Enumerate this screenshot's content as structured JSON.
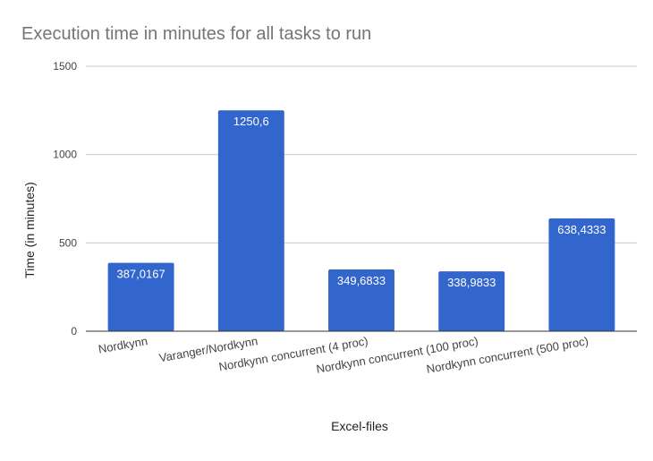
{
  "chart_data": {
    "type": "bar",
    "title": "Execution time in minutes for all tasks to run",
    "xlabel": "Excel-files",
    "ylabel": "Time (in minutes)",
    "ylim": [
      0,
      1500
    ],
    "yticks": [
      0,
      500,
      1000,
      1500
    ],
    "grid": true,
    "bar_color": "#3366cc",
    "categories": [
      "Nordkynn",
      "Varanger/Nordkynn",
      "Nordkynn concurrent (4 proc)",
      "Nordkynn concurrent (100 proc)",
      "Nordkynn concurrent (500 proc)"
    ],
    "values": [
      387.0167,
      1250.6,
      349.6833,
      338.9833,
      638.4333
    ],
    "value_labels": [
      "387,0167",
      "1250,6",
      "349,6833",
      "338,9833",
      "638,4333"
    ]
  }
}
